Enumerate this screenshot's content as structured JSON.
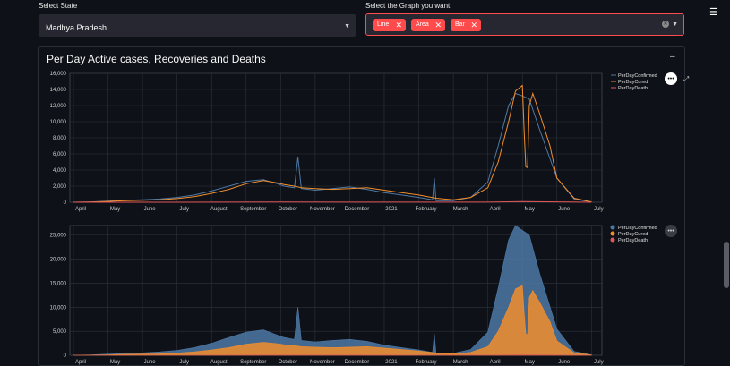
{
  "colors": {
    "accent": "#ff4b4b",
    "confirmed": "#4e79a7",
    "cured": "#f28e2b",
    "death": "#e15759"
  },
  "state_select": {
    "label": "Select State",
    "value": "Madhya Pradesh"
  },
  "graph_select": {
    "label": "Select the Graph you want:",
    "tags": [
      "Line",
      "Area",
      "Bar"
    ]
  },
  "menu_icon": "hamburger-icon",
  "card": {
    "title": "Per Day Active cases, Recoveries and Deaths",
    "collapse_label": "–"
  },
  "chart_data": [
    {
      "type": "line",
      "title": "",
      "ylim": [
        0,
        16000
      ],
      "yticks": [
        0,
        2000,
        4000,
        6000,
        8000,
        10000,
        12000,
        14000,
        16000
      ],
      "ytick_labels": [
        "0",
        "2,000",
        "4,000",
        "6,000",
        "8,000",
        "10,000",
        "12,000",
        "14,000",
        "16,000"
      ],
      "xtick_labels": [
        "April",
        "May",
        "June",
        "July",
        "August",
        "September",
        "October",
        "November",
        "December",
        "2021",
        "February",
        "March",
        "April",
        "May",
        "June",
        "July"
      ],
      "x_months": [
        0,
        1,
        2,
        3,
        4,
        5,
        6,
        7,
        8,
        9,
        10,
        11,
        12,
        13,
        14,
        15
      ],
      "series": [
        {
          "name": "PerDayConfirmed",
          "x": [
            0,
            0.5,
            1,
            1.5,
            2,
            2.5,
            3,
            3.5,
            4,
            4.5,
            5,
            5.5,
            5.9,
            6.1,
            6.4,
            6.5,
            6.6,
            7,
            7.5,
            8,
            8.5,
            9,
            9.5,
            10,
            10.4,
            10.45,
            10.5,
            11,
            11.5,
            12,
            12.3,
            12.6,
            12.8,
            13,
            13.2,
            13.5,
            14,
            14.5,
            15
          ],
          "values": [
            0,
            50,
            150,
            250,
            300,
            400,
            600,
            900,
            1400,
            2000,
            2600,
            2800,
            2300,
            2000,
            1800,
            5600,
            1700,
            1500,
            1700,
            1900,
            1600,
            1200,
            900,
            600,
            300,
            3000,
            200,
            200,
            600,
            2500,
            7000,
            12000,
            13500,
            13200,
            12800,
            9000,
            3000,
            400,
            50
          ]
        },
        {
          "name": "PerDayCured",
          "x": [
            0,
            0.5,
            1,
            1.5,
            2,
            2.5,
            3,
            3.5,
            4,
            4.5,
            5,
            5.5,
            5.9,
            6.1,
            6.4,
            6.6,
            7,
            7.5,
            8,
            8.5,
            9,
            9.5,
            10,
            10.5,
            11,
            11.5,
            12,
            12.3,
            12.6,
            12.8,
            13,
            13.05,
            13.1,
            13.15,
            13.2,
            13.3,
            13.5,
            13.8,
            14,
            14.5,
            15
          ],
          "values": [
            0,
            30,
            100,
            200,
            250,
            300,
            450,
            700,
            1100,
            1600,
            2300,
            2700,
            2400,
            2200,
            2000,
            1800,
            1700,
            1600,
            1700,
            1800,
            1500,
            1200,
            900,
            500,
            300,
            600,
            1800,
            5000,
            10000,
            13800,
            14500,
            9000,
            4400,
            4300,
            12000,
            13500,
            11000,
            7000,
            3000,
            500,
            50
          ]
        },
        {
          "name": "PerDayDeath",
          "x": [
            0,
            3,
            6,
            9,
            12,
            13,
            14,
            15
          ],
          "values": [
            0,
            5,
            30,
            15,
            10,
            90,
            40,
            0
          ]
        }
      ]
    },
    {
      "type": "area",
      "title": "",
      "ylim": [
        0,
        27000
      ],
      "yticks": [
        0,
        5000,
        10000,
        15000,
        20000,
        25000
      ],
      "ytick_labels": [
        "0",
        "5,000",
        "10,000",
        "15,000",
        "20,000",
        "25,000"
      ],
      "xtick_labels": [
        "April",
        "May",
        "June",
        "July",
        "August",
        "September",
        "October",
        "November",
        "December",
        "2021",
        "February",
        "March",
        "April",
        "May",
        "June",
        "July"
      ],
      "x_months": [
        0,
        1,
        2,
        3,
        4,
        5,
        6,
        7,
        8,
        9,
        10,
        11,
        12,
        13,
        14,
        15
      ],
      "series": [
        {
          "name": "PerDayConfirmed",
          "x": [
            0,
            0.5,
            1,
            1.5,
            2,
            2.5,
            3,
            3.5,
            4,
            4.5,
            5,
            5.5,
            5.9,
            6.1,
            6.4,
            6.5,
            6.6,
            7,
            7.5,
            8,
            8.5,
            9,
            9.5,
            10,
            10.4,
            10.45,
            10.5,
            11,
            11.5,
            12,
            12.3,
            12.6,
            12.8,
            13,
            13.2,
            13.5,
            14,
            14.5,
            15
          ],
          "values": [
            0,
            80,
            250,
            400,
            500,
            700,
            1000,
            1600,
            2500,
            3700,
            4800,
            5300,
            4200,
            3700,
            3300,
            10000,
            3100,
            2800,
            3100,
            3300,
            2900,
            2100,
            1600,
            1100,
            600,
            4500,
            400,
            400,
            1200,
            4800,
            14000,
            24000,
            27000,
            26000,
            25000,
            17000,
            5500,
            800,
            100
          ]
        },
        {
          "name": "PerDayCured",
          "x": [
            0,
            0.5,
            1,
            1.5,
            2,
            2.5,
            3,
            3.5,
            4,
            4.5,
            5,
            5.5,
            5.9,
            6.1,
            6.4,
            6.6,
            7,
            7.5,
            8,
            8.5,
            9,
            9.5,
            10,
            10.5,
            11,
            11.5,
            12,
            12.3,
            12.6,
            12.8,
            13,
            13.05,
            13.1,
            13.15,
            13.2,
            13.3,
            13.5,
            13.8,
            14,
            14.5,
            15
          ],
          "values": [
            0,
            30,
            100,
            200,
            250,
            300,
            450,
            700,
            1100,
            1600,
            2300,
            2700,
            2400,
            2200,
            2000,
            1800,
            1700,
            1600,
            1700,
            1800,
            1500,
            1200,
            900,
            500,
            300,
            600,
            1800,
            5000,
            10000,
            13800,
            14500,
            9000,
            4400,
            4300,
            12000,
            13500,
            11000,
            7000,
            3000,
            500,
            50
          ]
        },
        {
          "name": "PerDayDeath",
          "x": [
            0,
            3,
            6,
            9,
            12,
            13,
            14,
            15
          ],
          "values": [
            0,
            5,
            30,
            15,
            10,
            90,
            40,
            0
          ]
        }
      ]
    }
  ]
}
